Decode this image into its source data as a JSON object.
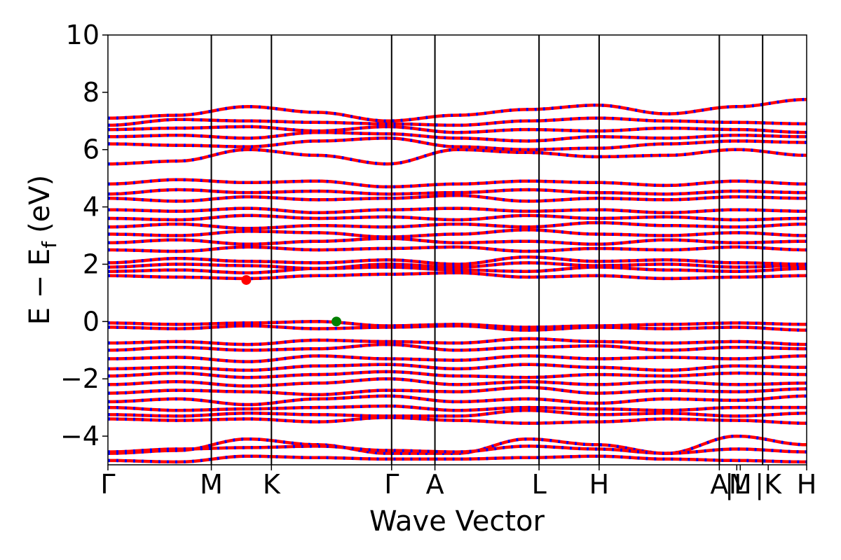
{
  "chart_data": {
    "type": "line",
    "xlabel": "Wave Vector",
    "ylabel": "E − E_f (eV)",
    "ylabel_parts": {
      "main": "E − E",
      "sub": "f",
      "unit": "(eV)"
    },
    "ylim": [
      -5,
      10
    ],
    "yticks": [
      {
        "value": -4,
        "label": "−4"
      },
      {
        "value": -2,
        "label": "−2"
      },
      {
        "value": 0,
        "label": "0"
      },
      {
        "value": 2,
        "label": "2"
      },
      {
        "value": 4,
        "label": "4"
      },
      {
        "value": 6,
        "label": "6"
      },
      {
        "value": 8,
        "label": "8"
      },
      {
        "value": 10,
        "label": "10"
      }
    ],
    "x_range": [
      0,
      1
    ],
    "kpoints": [
      {
        "label": "Γ",
        "x": 0.0
      },
      {
        "label": "M",
        "x": 0.148
      },
      {
        "label": "K",
        "x": 0.234
      },
      {
        "label": "Γ",
        "x": 0.406
      },
      {
        "label": "A",
        "x": 0.468
      },
      {
        "label": "L",
        "x": 0.617
      },
      {
        "label": "H",
        "x": 0.703
      },
      {
        "label": "A",
        "x": 0.875
      },
      {
        "label": "|L",
        "x": 0.9
      },
      {
        "label": "M",
        "x": 0.905
      },
      {
        "label": "|K",
        "x": 0.945
      },
      {
        "label": "H",
        "x": 1.0
      }
    ],
    "segment_breaks": [
      0.148,
      0.234,
      0.406,
      0.468,
      0.617,
      0.703,
      0.875,
      0.937
    ],
    "series": [
      {
        "color": "#ff0000",
        "style": "solid"
      },
      {
        "color": "#0000ff",
        "style": "dashed"
      }
    ],
    "bands": [
      [
        -4.85,
        -4.9,
        -4.7,
        -4.75,
        -4.8,
        -4.8,
        -4.75,
        -4.7,
        -4.8,
        -4.85,
        -4.9
      ],
      [
        -4.6,
        -4.5,
        -4.1,
        -4.3,
        -4.6,
        -4.6,
        -4.1,
        -4.3,
        -4.6,
        -4.0,
        -4.3
      ],
      [
        -4.55,
        -4.45,
        -4.4,
        -4.35,
        -4.5,
        -4.55,
        -4.35,
        -4.45,
        -4.6,
        -4.45,
        -4.55
      ],
      [
        -3.4,
        -3.45,
        -3.4,
        -3.5,
        -3.35,
        -3.45,
        -3.55,
        -3.5,
        -3.4,
        -3.45,
        -3.55
      ],
      [
        -3.25,
        -3.3,
        -3.2,
        -3.25,
        -3.3,
        -3.3,
        -3.1,
        -3.25,
        -3.2,
        -3.3,
        -3.2
      ],
      [
        -3.0,
        -3.1,
        -3.05,
        -3.0,
        -2.95,
        -3.1,
        -3.0,
        -3.05,
        -3.1,
        -3.0,
        -3.0
      ],
      [
        -2.8,
        -2.7,
        -2.9,
        -2.7,
        -2.6,
        -2.8,
        -2.7,
        -2.85,
        -2.7,
        -2.75,
        -2.6
      ],
      [
        -2.5,
        -2.4,
        -2.45,
        -2.55,
        -2.4,
        -2.45,
        -2.3,
        -2.5,
        -2.4,
        -2.45,
        -2.35
      ],
      [
        -2.2,
        -2.1,
        -2.25,
        -2.15,
        -2.0,
        -2.2,
        -2.1,
        -2.2,
        -2.1,
        -2.2,
        -2.15
      ],
      [
        -1.9,
        -1.8,
        -1.95,
        -1.85,
        -1.75,
        -1.9,
        -1.95,
        -1.85,
        -1.9,
        -1.8,
        -1.85
      ],
      [
        -1.65,
        -1.6,
        -1.7,
        -1.55,
        -1.5,
        -1.65,
        -1.5,
        -1.6,
        -1.7,
        -1.55,
        -1.6
      ],
      [
        -1.3,
        -1.25,
        -1.4,
        -1.2,
        -1.3,
        -1.35,
        -1.2,
        -1.3,
        -1.25,
        -1.3,
        -1.2
      ],
      [
        -1.0,
        -0.9,
        -1.0,
        -0.95,
        -0.8,
        -1.0,
        -0.9,
        -0.85,
        -1.0,
        -0.9,
        -0.95
      ],
      [
        -0.75,
        -0.7,
        -0.8,
        -0.65,
        -0.7,
        -0.75,
        -0.6,
        -0.7,
        -0.75,
        -0.7,
        -0.8
      ],
      [
        -0.2,
        -0.25,
        -0.15,
        -0.25,
        -0.2,
        -0.15,
        -0.3,
        -0.2,
        -0.25,
        -0.2,
        -0.3
      ],
      [
        -0.05,
        -0.1,
        -0.05,
        0.0,
        -0.15,
        -0.1,
        -0.2,
        -0.15,
        -0.1,
        -0.05,
        -0.1
      ],
      [
        1.6,
        1.55,
        1.5,
        1.6,
        1.65,
        1.7,
        1.55,
        1.6,
        1.5,
        1.55,
        1.6
      ],
      [
        1.75,
        1.8,
        1.7,
        1.85,
        1.9,
        1.8,
        1.75,
        1.9,
        1.8,
        1.75,
        1.85
      ],
      [
        1.9,
        2.0,
        1.95,
        1.85,
        2.0,
        1.9,
        2.05,
        1.95,
        2.0,
        1.9,
        1.95
      ],
      [
        2.05,
        2.2,
        2.1,
        2.05,
        2.15,
        2.0,
        2.25,
        2.1,
        2.15,
        2.05,
        2.0
      ],
      [
        2.5,
        2.45,
        2.6,
        2.5,
        2.55,
        2.6,
        2.45,
        2.55,
        2.5,
        2.6,
        2.5
      ],
      [
        2.75,
        2.85,
        2.7,
        2.8,
        2.9,
        2.75,
        2.8,
        2.7,
        2.85,
        2.75,
        2.8
      ],
      [
        3.05,
        3.0,
        3.15,
        3.1,
        2.95,
        3.05,
        3.2,
        3.05,
        3.0,
        3.1,
        3.0
      ],
      [
        3.3,
        3.4,
        3.25,
        3.35,
        3.3,
        3.4,
        3.3,
        3.45,
        3.35,
        3.3,
        3.4
      ],
      [
        3.6,
        3.55,
        3.7,
        3.6,
        3.65,
        3.55,
        3.7,
        3.6,
        3.65,
        3.55,
        3.6
      ],
      [
        3.9,
        3.85,
        3.95,
        3.8,
        3.9,
        3.95,
        3.85,
        3.9,
        3.8,
        3.9,
        3.85
      ],
      [
        4.3,
        4.2,
        4.35,
        4.25,
        4.3,
        4.4,
        4.2,
        4.3,
        4.25,
        4.35,
        4.3
      ],
      [
        4.45,
        4.6,
        4.5,
        4.55,
        4.45,
        4.5,
        4.6,
        4.5,
        4.45,
        4.55,
        4.5
      ],
      [
        4.8,
        4.95,
        4.85,
        4.9,
        4.7,
        4.8,
        4.9,
        4.85,
        4.75,
        4.9,
        4.8
      ],
      [
        5.5,
        5.6,
        6.0,
        5.8,
        5.5,
        6.0,
        5.9,
        5.75,
        5.8,
        6.0,
        5.8
      ],
      [
        6.2,
        6.15,
        6.1,
        6.3,
        6.4,
        6.1,
        6.0,
        6.05,
        6.2,
        6.3,
        6.25
      ],
      [
        6.45,
        6.5,
        6.4,
        6.6,
        6.55,
        6.4,
        6.3,
        6.45,
        6.4,
        6.5,
        6.45
      ],
      [
        6.7,
        6.75,
        6.8,
        6.65,
        6.8,
        6.6,
        6.7,
        6.65,
        6.75,
        6.7,
        6.6
      ],
      [
        6.85,
        7.05,
        7.0,
        6.95,
        6.9,
        6.85,
        7.0,
        7.1,
        7.0,
        6.95,
        6.9
      ],
      [
        7.1,
        7.2,
        7.5,
        7.3,
        7.0,
        7.2,
        7.4,
        7.55,
        7.25,
        7.5,
        7.75
      ]
    ],
    "markers": [
      {
        "x": 0.198,
        "y": 1.45,
        "color": "#ff0000"
      },
      {
        "x": 0.327,
        "y": 0.0,
        "color": "#008000"
      }
    ]
  }
}
